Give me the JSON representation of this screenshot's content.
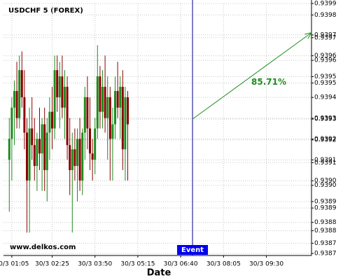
{
  "chart_data": {
    "type": "candlestick",
    "title": "USDCHF 5 (FOREX)",
    "watermark": "www.delkos.com",
    "x_label": "Date",
    "categories": [
      null,
      null,
      null,
      null,
      null,
      null,
      null,
      null,
      null,
      null,
      null,
      null,
      null,
      null,
      null,
      null,
      null,
      null,
      null,
      null,
      null,
      null,
      null,
      null,
      null,
      null,
      null,
      null,
      null,
      null,
      null,
      null,
      null,
      null,
      null,
      null,
      null,
      null,
      null,
      null,
      null,
      null,
      null,
      null,
      null,
      null,
      null,
      null
    ],
    "ohlc": [
      [
        0.93915,
        0.93935,
        0.9389,
        0.93925
      ],
      [
        0.93925,
        0.93945,
        0.93905,
        0.9394
      ],
      [
        0.9394,
        0.93953,
        0.93922,
        0.93948
      ],
      [
        0.93948,
        0.93962,
        0.9393,
        0.93935
      ],
      [
        0.93935,
        0.93965,
        0.9393,
        0.93958
      ],
      [
        0.93958,
        0.93967,
        0.9394,
        0.93945
      ],
      [
        0.93945,
        0.93958,
        0.9392,
        0.93928
      ],
      [
        0.93928,
        0.93935,
        0.9388,
        0.93905
      ],
      [
        0.93905,
        0.9394,
        0.9388,
        0.9393
      ],
      [
        0.9393,
        0.93945,
        0.93915,
        0.93922
      ],
      [
        0.93922,
        0.93935,
        0.93905,
        0.93912
      ],
      [
        0.93912,
        0.93928,
        0.939,
        0.93925
      ],
      [
        0.93925,
        0.9394,
        0.9391,
        0.93918
      ],
      [
        0.93918,
        0.93935,
        0.939,
        0.93932
      ],
      [
        0.93932,
        0.9394,
        0.939,
        0.9391
      ],
      [
        0.9391,
        0.93935,
        0.93895,
        0.93928
      ],
      [
        0.93928,
        0.93945,
        0.93915,
        0.93938
      ],
      [
        0.93938,
        0.9395,
        0.9392,
        0.9393
      ],
      [
        0.9393,
        0.93965,
        0.93925,
        0.93958
      ],
      [
        0.93958,
        0.93965,
        0.93938,
        0.93945
      ],
      [
        0.93945,
        0.93962,
        0.9393,
        0.93955
      ],
      [
        0.93955,
        0.93965,
        0.93935,
        0.9394
      ],
      [
        0.9394,
        0.93958,
        0.93925,
        0.9395
      ],
      [
        0.9395,
        0.93955,
        0.93915,
        0.93922
      ],
      [
        0.93922,
        0.93935,
        0.93898,
        0.9391
      ],
      [
        0.9391,
        0.93928,
        0.9388,
        0.9392
      ],
      [
        0.9392,
        0.9393,
        0.93905,
        0.93912
      ],
      [
        0.93912,
        0.9393,
        0.93895,
        0.93925
      ],
      [
        0.93925,
        0.93935,
        0.939,
        0.93905
      ],
      [
        0.93905,
        0.9393,
        0.93898,
        0.93928
      ],
      [
        0.93928,
        0.9395,
        0.93915,
        0.93945
      ],
      [
        0.93945,
        0.93955,
        0.9392,
        0.9393
      ],
      [
        0.9393,
        0.93945,
        0.9391,
        0.93918
      ],
      [
        0.93918,
        0.93925,
        0.93905,
        0.93915
      ],
      [
        0.93915,
        0.93935,
        0.93908,
        0.9393
      ],
      [
        0.9393,
        0.9397,
        0.93925,
        0.93955
      ],
      [
        0.93955,
        0.9396,
        0.9393,
        0.93938
      ],
      [
        0.93938,
        0.93958,
        0.9393,
        0.9395
      ],
      [
        0.9395,
        0.93965,
        0.93928,
        0.93935
      ],
      [
        0.93935,
        0.93955,
        0.93915,
        0.93945
      ],
      [
        0.93945,
        0.9395,
        0.93905,
        0.93925
      ],
      [
        0.93925,
        0.9394,
        0.93905,
        0.93932
      ],
      [
        0.93932,
        0.93955,
        0.93925,
        0.93948
      ],
      [
        0.93948,
        0.93962,
        0.93935,
        0.9394
      ],
      [
        0.9394,
        0.93955,
        0.93925,
        0.9395
      ],
      [
        0.9395,
        0.93958,
        0.9391,
        0.9392
      ],
      [
        0.9392,
        0.9395,
        0.93905,
        0.93945
      ],
      [
        0.93945,
        0.93948,
        0.93905,
        0.93932
      ]
    ],
    "colors": {
      "up": "#1e8c1e",
      "down": "#8b0000"
    },
    "xlim": [
      -2.3,
      119.9
    ],
    "xticks": [
      {
        "value": 1,
        "label": "30/3 01:05"
      },
      {
        "value": 17,
        "label": "30/3 02:25"
      },
      {
        "value": 34,
        "label": "30/3 03:50"
      },
      {
        "value": 51,
        "label": "30/3 05:15"
      },
      {
        "value": 68,
        "label": "30/3 06:40"
      },
      {
        "value": 85,
        "label": "30/3 08:05"
      },
      {
        "value": 102,
        "label": "30/3 09:30"
      }
    ],
    "ylim": [
      0.93869,
      0.9399
    ],
    "yticks": [
      {
        "value": 0.9399,
        "label": "0.9399"
      },
      {
        "value": 0.939845,
        "label": "0.9398"
      },
      {
        "value": 0.939749,
        "label": "0.9397"
      },
      {
        "value": 0.939736,
        "label": "0.9397"
      },
      {
        "value": 0.939649,
        "label": "0.9396"
      },
      {
        "value": 0.939627,
        "label": "0.9396"
      },
      {
        "value": 0.939549,
        "label": "0.9395"
      },
      {
        "value": 0.939518,
        "label": "0.9395"
      },
      {
        "value": 0.939449,
        "label": "0.9394"
      },
      {
        "value": 0.939349,
        "label": "0.9393"
      },
      {
        "value": 0.939345,
        "label": "0.9393"
      },
      {
        "value": 0.939249,
        "label": "0.9392"
      },
      {
        "value": 0.939245,
        "label": "0.9392"
      },
      {
        "value": 0.939149,
        "label": "0.9391"
      },
      {
        "value": 0.939136,
        "label": "0.9391"
      },
      {
        "value": 0.939049,
        "label": "0.9390"
      },
      {
        "value": 0.939027,
        "label": "0.9390"
      },
      {
        "value": 0.938949,
        "label": "0.9389"
      },
      {
        "value": 0.938918,
        "label": "0.9389"
      },
      {
        "value": 0.938849,
        "label": "0.9388"
      },
      {
        "value": 0.938809,
        "label": "0.9388"
      },
      {
        "value": 0.938749,
        "label": "0.9387"
      },
      {
        "value": 0.9387,
        "label": "0.9387"
      }
    ],
    "grid": true,
    "event": {
      "x": 72.7,
      "label": "Event",
      "color": "#00008b",
      "label_color": "#0000ee"
    },
    "projection": {
      "x": [
        72.7,
        119.9
      ],
      "y": [
        0.939345,
        0.93976
      ],
      "label": "85.71%",
      "color": "#1e8c1e"
    }
  }
}
